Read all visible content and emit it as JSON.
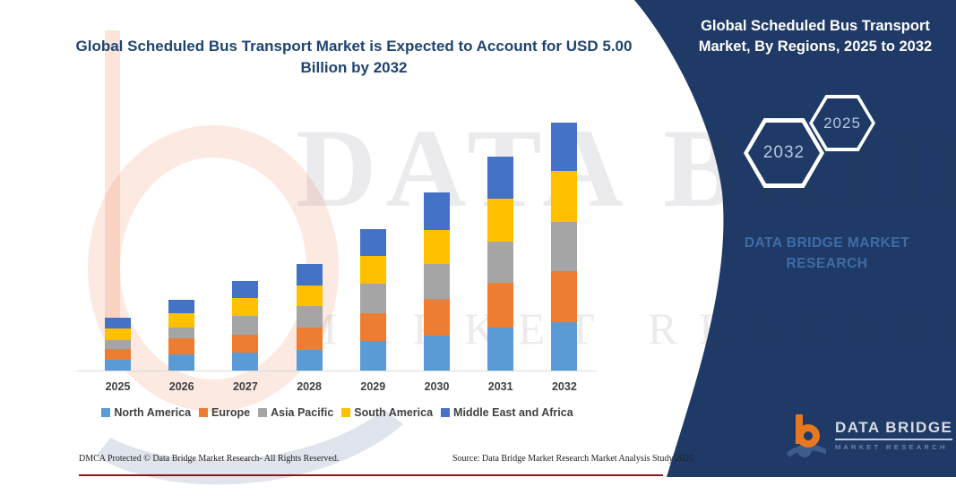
{
  "main_title": "Global Scheduled Bus Transport Market is Expected to Account for USD 5.00 Billion by 2032",
  "panel": {
    "title": "Global Scheduled Bus Transport Market, By Regions, 2025 to 2032",
    "hex_front": "2032",
    "hex_back": "2025",
    "brand_line1": "DATA BRIDGE MARKET",
    "brand_line2": "RESEARCH",
    "background_color": "#1F3A66"
  },
  "logo": {
    "title": "DATA BRIDGE",
    "subtitle": "MARKET RESEARCH",
    "mark_orange": "#E87722",
    "mark_blue": "#3C5C8E"
  },
  "watermark": {
    "line1": "DATA BRIDGE",
    "line2": "MARKET RESEARCH"
  },
  "footer": {
    "left": "DMCA Protected © Data Bridge Market Research-  All Rights Reserved.",
    "right": "Source: Data Bridge Market Research  Market Analysis Study 2025"
  },
  "chart_data": {
    "type": "bar",
    "stacked": true,
    "unit": "USD Billion",
    "title": "Global Scheduled Bus Transport Market is Expected to Account for USD 5.00 Billion by 2032",
    "xlabel": "",
    "ylabel": "",
    "y_axis_visible": false,
    "grid": false,
    "legend_position": "bottom",
    "categories": [
      "2025",
      "2026",
      "2027",
      "2028",
      "2029",
      "2030",
      "2031",
      "2032"
    ],
    "series": [
      {
        "name": "North America",
        "color": "#5B9BD5",
        "values": [
          0.22,
          0.33,
          0.37,
          0.41,
          0.6,
          0.71,
          0.87,
          0.98
        ]
      },
      {
        "name": "Europe",
        "color": "#ED7D31",
        "values": [
          0.22,
          0.32,
          0.36,
          0.46,
          0.56,
          0.73,
          0.9,
          1.02
        ]
      },
      {
        "name": "Asia Pacific",
        "color": "#A5A5A5",
        "values": [
          0.18,
          0.22,
          0.37,
          0.42,
          0.58,
          0.7,
          0.83,
          0.99
        ]
      },
      {
        "name": "South America",
        "color": "#FFC000",
        "values": [
          0.22,
          0.29,
          0.37,
          0.42,
          0.57,
          0.7,
          0.85,
          1.03
        ]
      },
      {
        "name": "Middle East and Africa",
        "color": "#4472C4",
        "values": [
          0.22,
          0.27,
          0.34,
          0.44,
          0.54,
          0.75,
          0.85,
          0.98
        ]
      }
    ],
    "totals": [
      1.06,
      1.43,
      1.81,
      2.15,
      2.85,
      3.59,
      4.3,
      5.0
    ]
  }
}
